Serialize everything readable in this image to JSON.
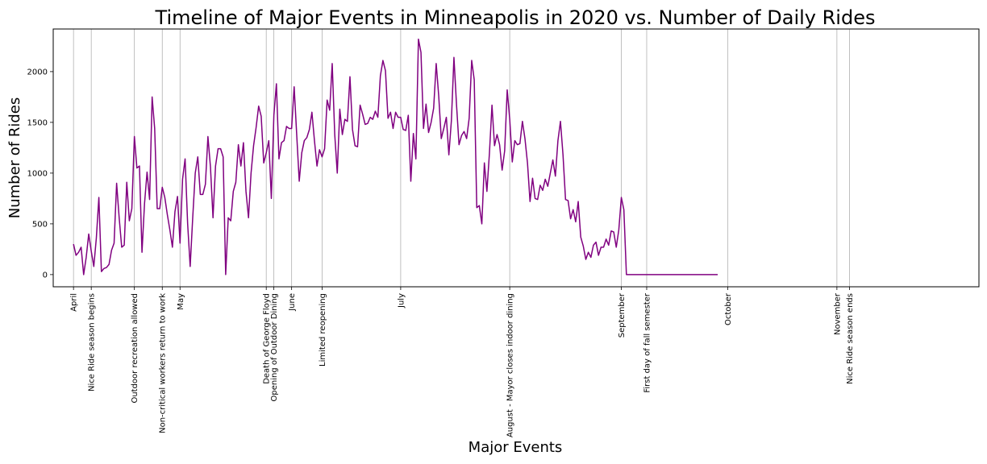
{
  "chart_data": {
    "type": "line",
    "title": "Timeline of Major Events in Minneapolis in 2020 vs. Number of Daily Rides",
    "xlabel": "Major Events",
    "ylabel": "Number of Rides",
    "xlim": [
      -8,
      357
    ],
    "ylim": [
      -120,
      2420
    ],
    "yticks": [
      0,
      500,
      1000,
      1500,
      2000
    ],
    "grid": "x-only",
    "line_color": "#800080",
    "event_markers": [
      {
        "x": 0,
        "label": "April"
      },
      {
        "x": 7,
        "label": "Nice Ride season begins"
      },
      {
        "x": 24,
        "label": "Outdoor recreation allowed"
      },
      {
        "x": 35,
        "label": "Non-critical workers return to work"
      },
      {
        "x": 42,
        "label": "May"
      },
      {
        "x": 76,
        "label": "Death of George Floyd"
      },
      {
        "x": 79,
        "label": "Opening of Outdoor Dining"
      },
      {
        "x": 86,
        "label": "June"
      },
      {
        "x": 98,
        "label": "Limited reopening"
      },
      {
        "x": 129,
        "label": "July"
      },
      {
        "x": 172,
        "label": "August - Mayor closes indoor dining"
      },
      {
        "x": 216,
        "label": "September"
      },
      {
        "x": 226,
        "label": "First day of fall semester"
      },
      {
        "x": 258,
        "label": "October"
      },
      {
        "x": 301,
        "label": "November"
      },
      {
        "x": 306,
        "label": "Nice Ride season ends"
      }
    ],
    "series": [
      {
        "x_start": 0,
        "values": [
          300,
          190,
          220,
          270,
          0,
          170,
          400,
          230,
          80,
          360,
          760,
          30,
          60,
          70,
          100,
          240,
          310,
          900,
          560,
          270,
          290,
          910,
          530,
          650,
          1360,
          1050,
          1070,
          220,
          700,
          1010,
          740,
          1750,
          1440,
          650,
          650,
          860,
          760,
          590,
          440,
          270,
          620,
          770,
          310,
          940,
          1140,
          500,
          80,
          560,
          1000,
          1160,
          790,
          790,
          890,
          1360,
          1060,
          560,
          1070,
          1240,
          1240,
          1160,
          0,
          560,
          530,
          820,
          910,
          1280,
          1070,
          1300,
          820,
          560,
          1000,
          1270,
          1450,
          1660,
          1560,
          1100,
          1200,
          1320,
          750,
          1570,
          1880,
          1140,
          1300,
          1320,
          1460,
          1440,
          1440,
          1850,
          1380,
          920,
          1200,
          1320,
          1350,
          1430,
          1600,
          1320,
          1070,
          1230,
          1160,
          1240,
          1720,
          1620,
          2080,
          1380,
          1000,
          1630,
          1380,
          1530,
          1510,
          1950,
          1430,
          1270,
          1260,
          1670,
          1580,
          1480,
          1490,
          1550,
          1530,
          1610,
          1550,
          1960,
          2110,
          2010,
          1540,
          1600,
          1440,
          1600,
          1550,
          1550,
          1430,
          1420,
          1570,
          920,
          1390,
          1140,
          2320,
          2190,
          1440,
          1680,
          1400,
          1500,
          1640,
          2080,
          1760,
          1340,
          1440,
          1550,
          1180,
          1520,
          2140,
          1680,
          1280,
          1370,
          1410,
          1340,
          1540,
          2110,
          1920,
          660,
          680,
          500,
          1100,
          820,
          1200,
          1670,
          1270,
          1380,
          1280,
          1030,
          1220,
          1820,
          1530,
          1110,
          1320,
          1280,
          1290,
          1510,
          1340,
          1100,
          720,
          950,
          750,
          740,
          880,
          830,
          940,
          870,
          1000,
          1130,
          970,
          1320,
          1510,
          1180,
          740,
          730,
          550,
          640,
          520,
          720,
          370,
          280,
          150,
          220,
          170,
          290,
          320,
          190,
          270,
          270,
          350,
          290,
          430,
          420,
          270,
          440,
          760,
          640,
          0,
          0,
          0,
          0,
          0,
          0,
          0,
          0,
          0,
          0,
          0,
          0,
          0,
          0,
          0,
          0,
          0,
          0,
          0,
          0,
          0,
          0,
          0,
          0,
          0,
          0,
          0,
          0,
          0,
          0,
          0,
          0,
          0,
          0,
          0,
          0,
          0
        ]
      }
    ]
  }
}
